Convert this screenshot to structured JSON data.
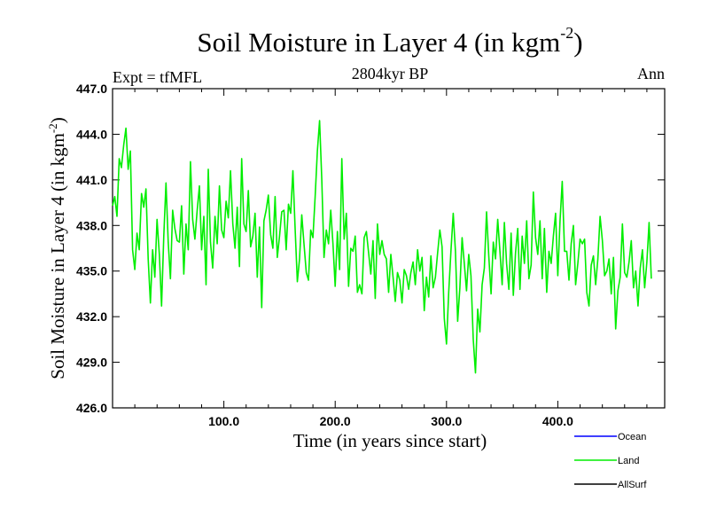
{
  "chart_data": {
    "type": "line",
    "title_main": "Soil Moisture in Layer 4 (in kgm",
    "title_sup": "-2",
    "title_close": ")",
    "subtitle": "2804kyr BP",
    "experiment": "Expt = tfMFL",
    "season": "Ann",
    "xlabel": "Time (in years since start)",
    "ylabel": "Soil Moisture in Layer 4 (in kgm",
    "ylabel_sup": "-2",
    "ylabel_close": ")",
    "xlim": [
      0,
      496
    ],
    "ylim": [
      426.0,
      447.0
    ],
    "x_ticks": [
      {
        "value": 100,
        "label": "100.0"
      },
      {
        "value": 200,
        "label": "200.0"
      },
      {
        "value": 300,
        "label": "300.0"
      },
      {
        "value": 400,
        "label": "400.0"
      }
    ],
    "y_ticks": [
      {
        "value": 426,
        "label": "426.0"
      },
      {
        "value": 429,
        "label": "429.0"
      },
      {
        "value": 432,
        "label": "432.0"
      },
      {
        "value": 435,
        "label": "435.0"
      },
      {
        "value": 438,
        "label": "438.0"
      },
      {
        "value": 441,
        "label": "441.0"
      },
      {
        "value": 444,
        "label": "444.0"
      },
      {
        "value": 447,
        "label": "447.0"
      }
    ],
    "legend": [
      {
        "name": "Ocean",
        "color": "#0000ff"
      },
      {
        "name": "Land",
        "color": "#00ee00"
      },
      {
        "name": "AllSurf",
        "color": "#000000"
      }
    ],
    "series": [
      {
        "name": "Land",
        "color": "#00ee00",
        "x_start": 0,
        "x_step": 2,
        "values": [
          439.3,
          439.9,
          438.6,
          442.4,
          441.8,
          443.3,
          444.4,
          441.7,
          442.9,
          436.4,
          435.1,
          437.5,
          436.4,
          440.1,
          439.2,
          440.4,
          435.8,
          432.9,
          436.4,
          434.6,
          438.4,
          436.1,
          432.7,
          437.3,
          440.8,
          436.9,
          434.5,
          439.0,
          437.8,
          437.0,
          436.9,
          439.3,
          434.8,
          438.1,
          436.4,
          442.2,
          438.4,
          437.1,
          439.0,
          440.6,
          436.4,
          438.6,
          434.1,
          441.7,
          436.9,
          435.2,
          438.6,
          436.8,
          440.6,
          437.7,
          437.2,
          439.6,
          438.5,
          441.6,
          438.1,
          436.5,
          439.2,
          435.3,
          442.4,
          438.1,
          437.6,
          440.3,
          436.6,
          437.3,
          438.8,
          434.6,
          437.9,
          432.6,
          438.3,
          439.0,
          440.0,
          437.4,
          436.5,
          439.9,
          435.9,
          437.3,
          438.9,
          439.0,
          436.4,
          439.4,
          438.8,
          441.6,
          437.8,
          434.3,
          435.8,
          438.7,
          436.8,
          434.9,
          434.4,
          437.7,
          437.2,
          439.9,
          442.9,
          444.9,
          441.0,
          435.9,
          437.7,
          436.8,
          439.0,
          436.8,
          434.0,
          437.6,
          435.1,
          442.4,
          437.1,
          438.8,
          434.0,
          436.5,
          436.3,
          437.3,
          433.6,
          434.1,
          433.5,
          437.2,
          437.6,
          436.2,
          434.8,
          437.0,
          433.2,
          438.1,
          436.1,
          437.0,
          436.1,
          435.8,
          433.6,
          436.1,
          434.6,
          433.0,
          434.9,
          434.4,
          432.9,
          435.1,
          434.7,
          433.8,
          434.9,
          435.6,
          434.1,
          436.4,
          435.0,
          435.9,
          432.4,
          434.6,
          433.3,
          436.0,
          433.9,
          434.6,
          436.2,
          437.7,
          436.6,
          431.9,
          430.2,
          433.6,
          436.3,
          438.8,
          436.3,
          431.7,
          433.9,
          437.2,
          435.5,
          433.7,
          436.1,
          434.7,
          430.5,
          428.3,
          432.5,
          431.0,
          434.1,
          435.2,
          438.9,
          436.0,
          433.5,
          436.9,
          435.8,
          438.4,
          436.3,
          434.1,
          438.2,
          435.5,
          433.8,
          437.5,
          433.4,
          436.2,
          437.8,
          433.8,
          437.3,
          435.5,
          438.3,
          434.5,
          435.4,
          440.2,
          437.2,
          436.1,
          438.3,
          434.5,
          437.8,
          433.6,
          436.3,
          435.5,
          437.3,
          438.8,
          434.7,
          438.3,
          440.9,
          436.3,
          436.3,
          434.4,
          436.8,
          438.0,
          434.1,
          435.5,
          437.1,
          436.8,
          437.1,
          433.6,
          432.7,
          435.4,
          436.0,
          434.1,
          435.8,
          438.6,
          437.0,
          434.7,
          435.0,
          435.8,
          433.5,
          435.9,
          431.2,
          433.7,
          434.6,
          438.1,
          434.9,
          434.6,
          435.6,
          437.0,
          433.9,
          435.0,
          432.7,
          435.2,
          436.4,
          433.9,
          435.6,
          438.2,
          434.5
        ]
      }
    ]
  }
}
